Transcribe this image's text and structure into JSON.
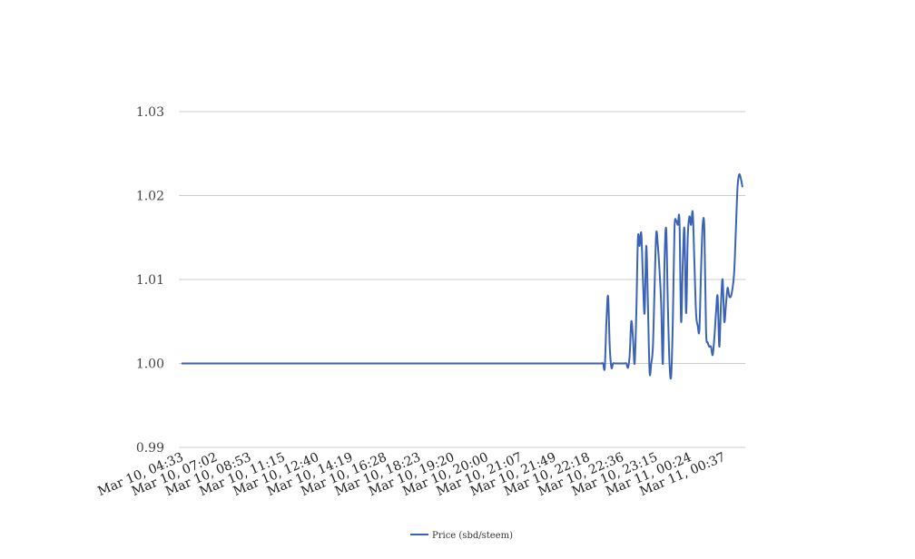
{
  "chart_data": {
    "type": "line",
    "title": "",
    "xlabel": "",
    "ylabel": "",
    "ylim": [
      0.99,
      1.03
    ],
    "yticks": [
      "0.99",
      "1.00",
      "1.01",
      "1.02",
      "1.03"
    ],
    "ytick_values": [
      0.99,
      1.0,
      1.01,
      1.02,
      1.03
    ],
    "xticks": [
      "Mar 10, 04:33",
      "Mar 10, 07:02",
      "Mar 10, 08:53",
      "Mar 10, 11:15",
      "Mar 10, 12:40",
      "Mar 10, 14:19",
      "Mar 10, 16:28",
      "Mar 10, 18:23",
      "Mar 10, 19:20",
      "Mar 10, 20:00",
      "Mar 10, 21:07",
      "Mar 10, 21:49",
      "Mar 10, 22:18",
      "Mar 10, 22:36",
      "Mar 10, 23:15",
      "Mar 11, 00:24",
      "Mar 11, 00:37"
    ],
    "grid": true,
    "legend": "bottom",
    "series": [
      {
        "name": "Price (sbd/steem)",
        "color": "#3a62b5",
        "values": [
          1.0,
          1.0,
          1.0,
          1.0,
          1.0,
          1.0,
          1.0,
          1.0,
          1.0,
          1.0,
          1.0,
          1.0,
          1.0,
          1.0,
          1.0,
          1.0,
          1.0,
          1.0,
          1.0,
          1.0,
          1.0,
          1.0,
          1.0,
          1.0,
          1.0,
          1.0,
          1.0,
          1.0,
          1.0,
          1.0,
          1.0,
          1.0,
          1.0,
          1.0,
          1.0,
          1.0,
          1.0,
          1.0,
          1.0,
          1.0,
          1.0,
          1.0,
          1.0,
          1.0,
          1.0,
          1.0,
          1.0,
          1.0,
          1.0,
          1.0,
          1.0,
          1.0,
          1.0,
          1.0,
          1.0,
          1.0,
          1.0,
          1.0,
          1.0,
          1.0,
          1.0,
          1.0,
          1.0,
          1.0,
          1.0,
          1.0,
          1.0,
          1.0,
          1.0,
          1.0,
          1.0,
          1.0,
          1.0,
          1.0,
          1.0,
          1.0,
          1.0,
          1.0,
          1.0,
          1.0,
          1.0,
          1.0,
          1.0,
          1.0,
          1.0,
          1.0,
          1.0,
          1.0,
          1.0,
          1.0,
          1.0,
          1.0,
          1.0,
          1.0,
          1.0,
          1.0,
          1.0,
          1.0,
          1.0,
          1.0,
          1.0,
          1.0,
          1.0,
          1.0,
          1.0,
          1.0,
          1.0,
          1.0,
          1.0,
          1.0,
          1.0,
          1.0,
          1.0,
          1.0,
          1.0,
          1.0,
          1.0,
          1.0,
          1.0,
          1.0,
          1.0,
          1.0,
          1.0,
          1.0,
          1.0,
          1.0,
          1.0,
          1.0,
          1.0,
          1.0,
          1.0,
          1.0,
          1.0,
          1.0,
          1.0,
          1.0,
          1.0,
          1.0,
          1.0,
          1.0,
          1.0,
          1.0,
          1.0,
          1.0,
          1.0,
          1.0,
          1.0,
          1.0,
          1.0,
          1.0,
          1.0,
          1.0,
          1.0,
          1.0,
          1.0,
          1.0,
          1.0,
          1.0,
          1.0,
          1.0,
          1.0,
          1.0,
          1.0,
          1.0,
          1.0,
          1.0,
          1.0,
          1.0,
          1.0,
          1.0,
          1.0,
          1.0,
          1.0,
          1.0,
          1.0,
          1.0,
          1.0,
          1.0,
          1.0,
          1.0,
          1.0,
          1.0,
          1.0,
          1.0,
          1.0,
          1.0,
          1.0,
          1.0,
          1.0,
          1.0,
          1.0,
          1.0,
          1.0,
          1.0,
          1.0,
          1.0,
          1.0,
          1.0,
          1.0,
          1.0,
          1.0,
          1.0,
          1.0,
          1.0,
          1.0,
          1.0,
          1.0,
          1.0,
          1.0,
          1.0,
          1.0,
          1.0,
          1.0,
          1.0,
          1.0,
          1.0,
          1.0,
          1.0,
          1.0,
          1.0,
          1.0,
          1.0,
          1.0,
          1.0,
          1.0,
          1.0,
          1.0,
          1.0,
          1.0,
          1.0,
          1.0,
          1.0,
          1.0,
          1.0,
          1.0,
          1.0,
          1.0,
          1.0,
          1.0,
          1.0,
          1.0,
          1.0,
          1.0,
          1.0,
          1.0,
          1.0,
          1.0,
          1.0,
          1.0,
          1.0,
          1.0,
          1.0,
          1.0,
          1.0,
          1.0,
          0.9995,
          1.005,
          1.008,
          1.002,
          0.9995,
          1.0,
          1.0,
          1.0,
          1.0,
          1.0,
          1.0,
          1.0,
          1.0,
          1.0,
          0.9995,
          1.001,
          1.005,
          1.003,
          1.0,
          1.006,
          1.015,
          1.014,
          1.0155,
          1.01,
          1.006,
          1.014,
          1.007,
          0.999,
          1.0,
          1.002,
          1.009,
          1.0155,
          1.014,
          1.011,
          1.007,
          1.0,
          1.012,
          1.016,
          1.007,
          1.0,
          0.9985,
          1.005,
          1.016,
          1.017,
          1.0165,
          1.017,
          1.005,
          1.012,
          1.016,
          1.006,
          1.015,
          1.0175,
          1.0165,
          1.018,
          1.012,
          1.006,
          1.0045,
          1.004,
          1.011,
          1.0165,
          1.016,
          1.004,
          1.0025,
          1.002,
          1.002,
          1.001,
          1.003,
          1.006,
          1.008,
          1.002,
          1.007,
          1.01,
          1.005,
          1.007,
          1.009,
          1.008,
          1.008,
          1.009,
          1.011,
          1.016,
          1.021,
          1.0225,
          1.022,
          1.021
        ]
      }
    ]
  }
}
